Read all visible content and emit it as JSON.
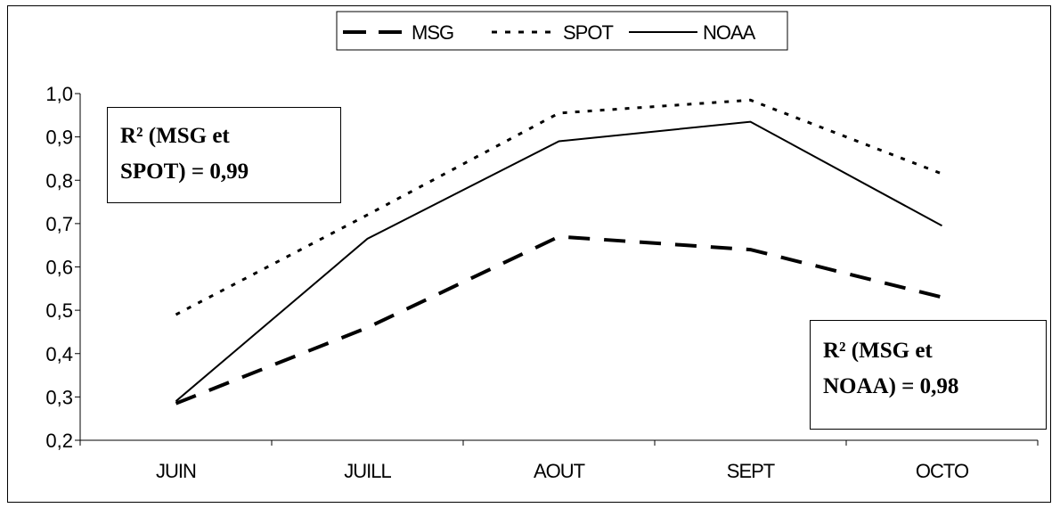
{
  "chart_data": {
    "type": "line",
    "title": "",
    "xlabel": "",
    "ylabel": "",
    "categories": [
      "JUIN",
      "JUILL",
      "AOUT",
      "SEPT",
      "OCTO"
    ],
    "ylim": [
      0.2,
      1.0
    ],
    "yticks": [
      "0,2",
      "0,3",
      "0,4",
      "0,5",
      "0,6",
      "0,7",
      "0,8",
      "0,9",
      "1,0"
    ],
    "grid": false,
    "legend_position": "top-center",
    "series": [
      {
        "name": "MSG",
        "values": [
          0.285,
          0.46,
          0.67,
          0.64,
          0.53
        ],
        "style": "long-dash",
        "color": "#000000"
      },
      {
        "name": "SPOT",
        "values": [
          0.49,
          0.72,
          0.955,
          0.985,
          0.815
        ],
        "style": "dotted",
        "color": "#000000"
      },
      {
        "name": "NOAA",
        "values": [
          0.29,
          0.665,
          0.89,
          0.935,
          0.695
        ],
        "style": "solid",
        "color": "#000000"
      }
    ],
    "annotations": [
      {
        "line1": "R² (MSG et",
        "line2": "SPOT) = 0,99"
      },
      {
        "line1": "R² (MSG et",
        "line2": "NOAA) = 0,98"
      }
    ]
  }
}
